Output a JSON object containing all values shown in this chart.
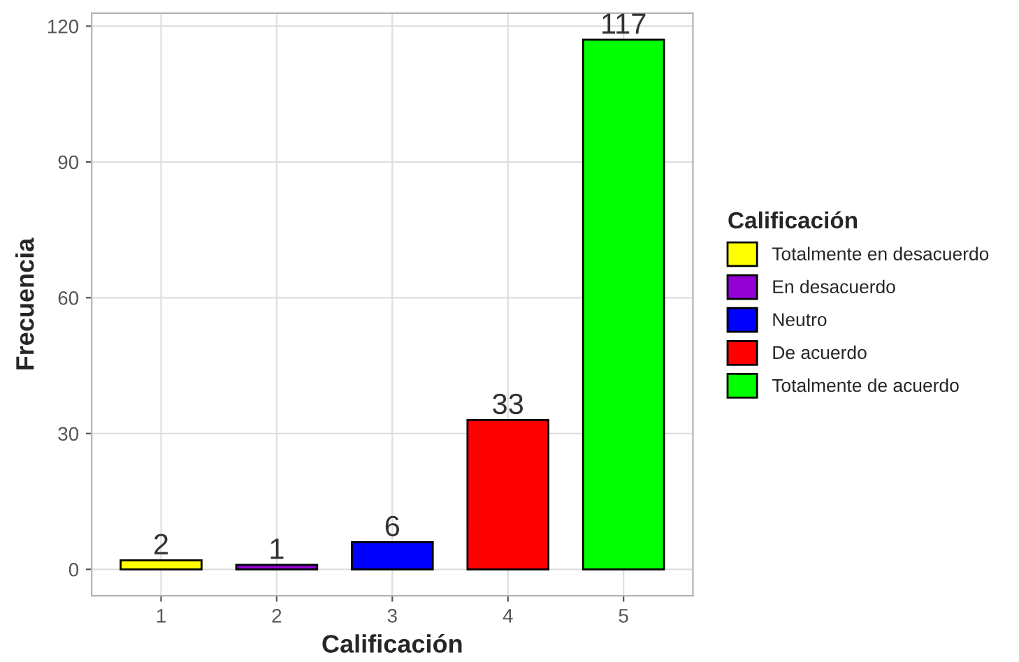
{
  "chart_data": {
    "type": "bar",
    "xlabel": "Calificación",
    "ylabel": "Frecuencia",
    "legend_title": "Calificación",
    "categories": [
      "1",
      "2",
      "3",
      "4",
      "5"
    ],
    "series": [
      {
        "name": "Totalmente en desacuerdo",
        "color": "#ffff00",
        "values": [
          2,
          null,
          null,
          null,
          null
        ]
      },
      {
        "name": "En desacuerdo",
        "color": "#9400d3",
        "values": [
          null,
          1,
          null,
          null,
          null
        ]
      },
      {
        "name": "Neutro",
        "color": "#0000ff",
        "values": [
          null,
          null,
          6,
          null,
          null
        ]
      },
      {
        "name": "De acuerdo",
        "color": "#ff0000",
        "values": [
          null,
          null,
          null,
          33,
          null
        ]
      },
      {
        "name": "Totalmente de acuerdo",
        "color": "#00ff00",
        "values": [
          null,
          null,
          null,
          null,
          117
        ]
      }
    ],
    "ylim": [
      -5.85,
      122.85
    ],
    "yticks": [
      0,
      30,
      60,
      90,
      120
    ],
    "grid": true,
    "legend": "right",
    "data_labels": true
  }
}
